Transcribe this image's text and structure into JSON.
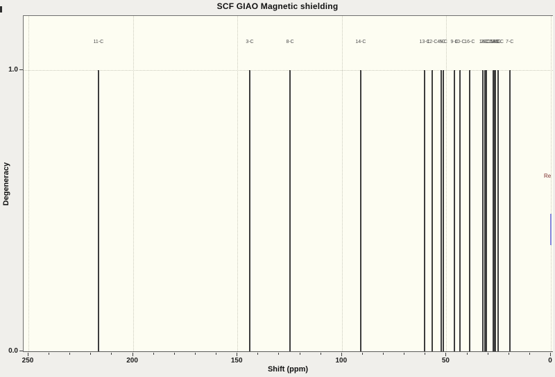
{
  "title": "SCF GIAO Magnetic shielding",
  "axes": {
    "x": {
      "label": "Shift (ppm)",
      "min": 0,
      "max": 250,
      "reversed": true,
      "major_ticks": [
        250,
        200,
        150,
        100,
        50,
        0
      ],
      "minor_tick_step": 10
    },
    "y": {
      "label": "Degeneracy",
      "min": 0.0,
      "max": 1.0,
      "tick_labels": [
        "1.0",
        "0.0"
      ]
    }
  },
  "reference": {
    "label": "Re",
    "label_color": "#7d2e2e",
    "line_color": "#8585dc"
  },
  "colors": {
    "window_background": "#f0efeb",
    "plot_background": "#fdfdf2",
    "frame": "#6e6e6e",
    "grid": "#c9c9bb",
    "peak": "#3c3c3c"
  },
  "chart_data": {
    "type": "bar",
    "subtype": "stick-spectrum",
    "title": "SCF GIAO Magnetic shielding",
    "xlabel": "Shift (ppm)",
    "ylabel": "Degeneracy",
    "xlim": [
      250,
      0
    ],
    "ylim": [
      0.0,
      1.0
    ],
    "grid": "dotted",
    "peaks": [
      {
        "shift": 216.5,
        "degeneracy": 1.0,
        "label": "11-C"
      },
      {
        "shift": 144.1,
        "degeneracy": 1.0,
        "label": "3-C"
      },
      {
        "shift": 124.8,
        "degeneracy": 1.0,
        "label": "8-C"
      },
      {
        "shift": 91.0,
        "degeneracy": 1.0,
        "label": "14-C"
      },
      {
        "shift": 60.4,
        "degeneracy": 1.0,
        "label": "13-C"
      },
      {
        "shift": 56.8,
        "degeneracy": 1.0,
        "label": "12-C"
      },
      {
        "shift": 52.5,
        "degeneracy": 1.0,
        "label": "4-C"
      },
      {
        "shift": 51.4,
        "degeneracy": 1.0,
        "label": "5-C"
      },
      {
        "shift": 46.1,
        "degeneracy": 1.0,
        "label": "9-C"
      },
      {
        "shift": 43.5,
        "degeneracy": 1.0,
        "label": "10-C"
      },
      {
        "shift": 38.9,
        "degeneracy": 1.0,
        "label": "16-C"
      },
      {
        "shift": 32.4,
        "degeneracy": 1.0,
        "label": "1-C"
      },
      {
        "shift": 31.7,
        "degeneracy": 1.0,
        "label": "2-C"
      },
      {
        "shift": 31.0,
        "degeneracy": 1.0,
        "label": "6-C"
      },
      {
        "shift": 27.7,
        "degeneracy": 1.0,
        "label": "15-C"
      },
      {
        "shift": 27.0,
        "degeneracy": 1.0,
        "label": "17-C"
      },
      {
        "shift": 26.4,
        "degeneracy": 1.0,
        "label": "18-C"
      },
      {
        "shift": 25.1,
        "degeneracy": 1.0,
        "label": "19-C"
      },
      {
        "shift": 19.7,
        "degeneracy": 1.0,
        "label": "7-C"
      }
    ]
  }
}
